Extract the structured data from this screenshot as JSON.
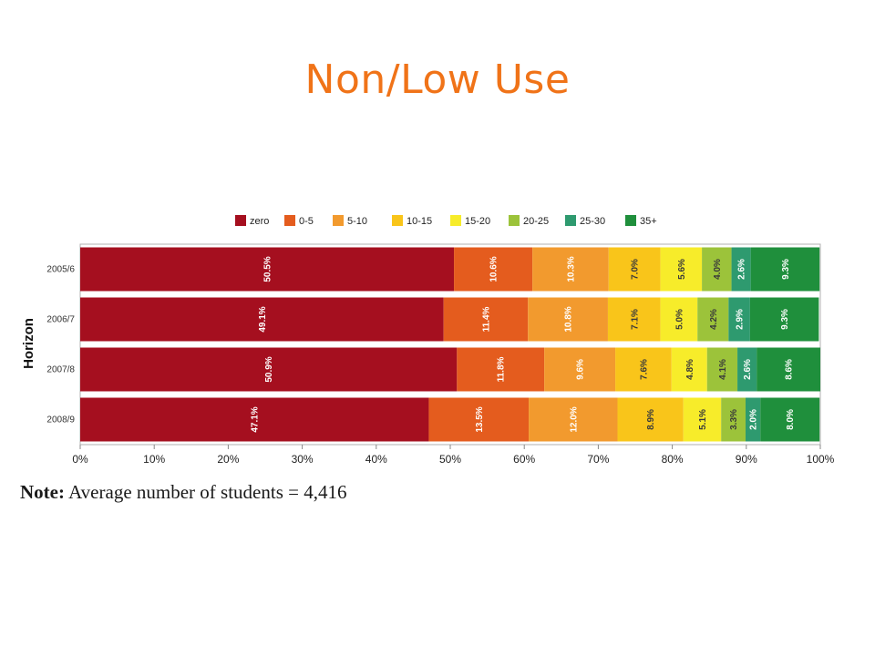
{
  "slide": {
    "title": "Non/Low Use"
  },
  "note": {
    "label": "Note:",
    "text": " Average number of students = 4,416"
  },
  "chart_data": {
    "type": "bar",
    "orientation": "horizontal",
    "stacked": true,
    "title": "",
    "xlabel": "",
    "ylabel": "Horizon",
    "xlim": [
      0,
      100
    ],
    "x_ticks": [
      "0%",
      "10%",
      "20%",
      "30%",
      "40%",
      "50%",
      "60%",
      "70%",
      "80%",
      "90%",
      "100%"
    ],
    "legend_position": "top",
    "categories": [
      "2005/6",
      "2006/7",
      "2007/8",
      "2008/9"
    ],
    "series": [
      {
        "name": "zero",
        "color": "#A50F1F",
        "values": [
          50.5,
          49.1,
          50.9,
          47.1
        ],
        "labels": [
          "50.5%",
          "49.1%",
          "50.9%",
          "47.1%"
        ]
      },
      {
        "name": "0-5",
        "color": "#E45C1E",
        "values": [
          10.6,
          11.4,
          11.8,
          13.5
        ],
        "labels": [
          "10.6%",
          "11.4%",
          "11.8%",
          "13.5%"
        ]
      },
      {
        "name": "5-10",
        "color": "#F29A2E",
        "values": [
          10.3,
          10.8,
          9.6,
          12.0
        ],
        "labels": [
          "10.3%",
          "10.8%",
          "9.6%",
          "12.0%"
        ]
      },
      {
        "name": "10-15",
        "color": "#F9C51A",
        "values": [
          7.0,
          7.1,
          7.6,
          8.9
        ],
        "labels": [
          "7.0%",
          "7.1%",
          "7.6%",
          "8.9%"
        ]
      },
      {
        "name": "15-20",
        "color": "#F7EC2A",
        "values": [
          5.6,
          5.0,
          4.8,
          5.1
        ],
        "labels": [
          "5.6%",
          "5.0%",
          "4.8%",
          "5.1%"
        ]
      },
      {
        "name": "20-25",
        "color": "#9CC33A",
        "values": [
          4.0,
          4.2,
          4.1,
          3.3
        ],
        "labels": [
          "4.0%",
          "4.2%",
          "4.1%",
          "3.3%"
        ]
      },
      {
        "name": "25-30",
        "color": "#2E9A6F",
        "values": [
          2.6,
          2.9,
          2.6,
          2.0
        ],
        "labels": [
          "2.6%",
          "2.9%",
          "2.6%",
          "2.0%"
        ]
      },
      {
        "name": "35+",
        "color": "#1F8F3C",
        "values": [
          9.3,
          9.3,
          8.6,
          8.0
        ],
        "labels": [
          "9.3%",
          "9.3%",
          "8.6%",
          "8.0%"
        ]
      }
    ]
  }
}
